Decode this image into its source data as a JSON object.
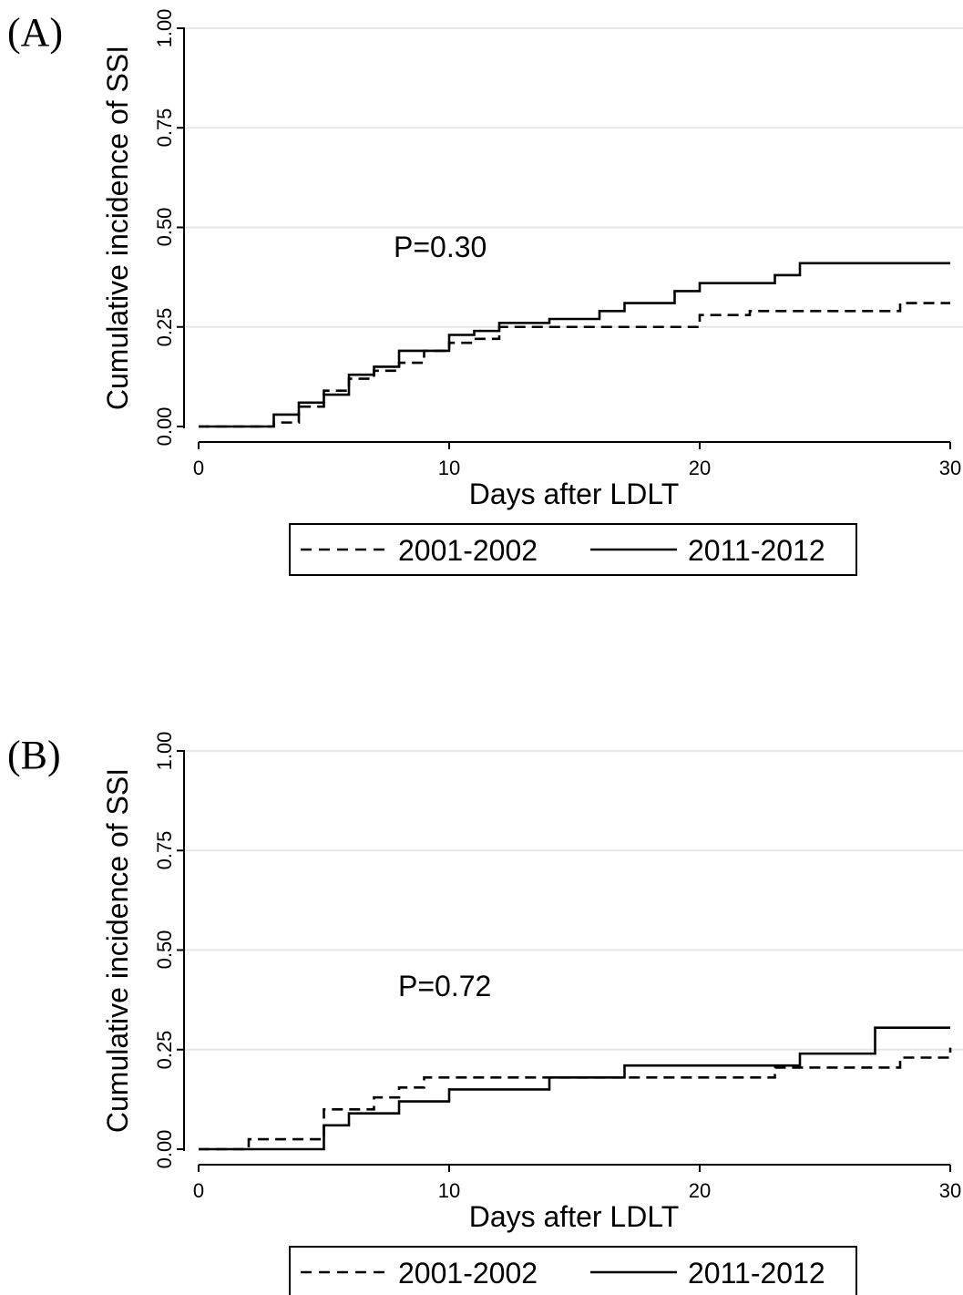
{
  "chart_data": [
    {
      "type": "line",
      "panel_label": "(A)",
      "xlabel": "Days after LDLT",
      "ylabel": "Cumulative incidence of SSI",
      "xlim": [
        0,
        30
      ],
      "ylim": [
        0,
        1
      ],
      "x_ticks": [
        "0",
        "10",
        "20",
        "30"
      ],
      "y_ticks": [
        "0.00",
        "0.25",
        "0.50",
        "0.75",
        "1.00"
      ],
      "grid": "horizontal",
      "annotation": "P=0.30",
      "legend_position": "bottom",
      "series": [
        {
          "name": "2001-2002",
          "style": "dashed",
          "color": "#000000",
          "x": [
            0,
            3,
            4,
            5,
            6,
            7,
            8,
            9,
            10,
            11,
            12,
            20,
            22,
            28,
            30
          ],
          "y": [
            0,
            0.01,
            0.05,
            0.09,
            0.12,
            0.14,
            0.16,
            0.19,
            0.21,
            0.22,
            0.25,
            0.28,
            0.29,
            0.31,
            0.31
          ]
        },
        {
          "name": "2011-2012",
          "style": "solid",
          "color": "#000000",
          "x": [
            0,
            3,
            4,
            5,
            6,
            7,
            8,
            10,
            11,
            12,
            14,
            16,
            17,
            19,
            20,
            23,
            24,
            30
          ],
          "y": [
            0,
            0.03,
            0.06,
            0.08,
            0.13,
            0.15,
            0.19,
            0.23,
            0.24,
            0.26,
            0.27,
            0.29,
            0.31,
            0.34,
            0.36,
            0.38,
            0.41,
            0.41
          ]
        }
      ]
    },
    {
      "type": "line",
      "panel_label": "(B)",
      "xlabel": "Days after LDLT",
      "ylabel": "Cumulative incidence of SSI",
      "xlim": [
        0,
        30
      ],
      "ylim": [
        0,
        1
      ],
      "x_ticks": [
        "0",
        "10",
        "20",
        "30"
      ],
      "y_ticks": [
        "0.00",
        "0.25",
        "0.50",
        "0.75",
        "1.00"
      ],
      "grid": "horizontal",
      "annotation": "P=0.72",
      "legend_position": "bottom",
      "series": [
        {
          "name": "2001-2002",
          "style": "dashed",
          "color": "#000000",
          "x": [
            0,
            2,
            5,
            7,
            8,
            9,
            23,
            28,
            30
          ],
          "y": [
            0,
            0.025,
            0.1,
            0.13,
            0.155,
            0.18,
            0.205,
            0.23,
            0.255
          ]
        },
        {
          "name": "2011-2012",
          "style": "solid",
          "color": "#000000",
          "x": [
            0,
            5,
            6,
            8,
            10,
            14,
            17,
            24,
            27,
            30
          ],
          "y": [
            0,
            0.06,
            0.09,
            0.12,
            0.15,
            0.18,
            0.21,
            0.24,
            0.305,
            0.305
          ]
        }
      ]
    }
  ]
}
